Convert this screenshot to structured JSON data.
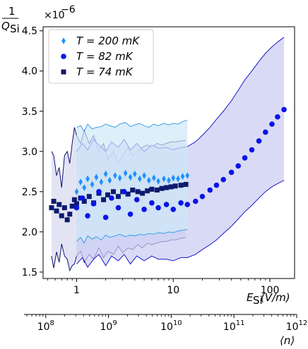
{
  "chart_data": {
    "type": "scatter",
    "title": "",
    "ylabel_num": "1",
    "ylabel_den": "Q",
    "ylabel_sub": "Si",
    "ylabel_multiplier": "×10",
    "ylabel_multiplier_exp": "−6",
    "xlabel_main": "E",
    "xlabel_sub": "Si",
    "xlabel_unit": " (V/m)",
    "x2label": "⟨n⟩",
    "x_scale": "log",
    "xlim": [
      0.45,
      180
    ],
    "ylim": [
      1.42,
      4.55
    ],
    "x2lim": [
      45000000.0,
      1000000000000.0
    ],
    "x2_scale": "log",
    "yticks": [
      {
        "v": 1.5,
        "label": "1.5"
      },
      {
        "v": 2.0,
        "label": "2.0"
      },
      {
        "v": 2.5,
        "label": "2.5"
      },
      {
        "v": 3.0,
        "label": "3.0"
      },
      {
        "v": 3.5,
        "label": "3.5"
      },
      {
        "v": 4.0,
        "label": "4.0"
      },
      {
        "v": 4.5,
        "label": "4.5"
      }
    ],
    "xticks": [
      {
        "v": 1,
        "label": "1"
      },
      {
        "v": 10,
        "label": "10"
      },
      {
        "v": 100,
        "label": "100"
      }
    ],
    "x2ticks": [
      {
        "v": 100000000.0,
        "base": "10",
        "exp": "8"
      },
      {
        "v": 1000000000.0,
        "base": "10",
        "exp": "9"
      },
      {
        "v": 10000000000.0,
        "base": "10",
        "exp": "10"
      },
      {
        "v": 100000000000.0,
        "base": "10",
        "exp": "11"
      },
      {
        "v": 1000000000000.0,
        "base": "10",
        "exp": "12"
      }
    ],
    "legend_position": "top-left",
    "grid": false,
    "series": [
      {
        "name": "T = 200 mK",
        "marker": "diamond",
        "color": "#1e90ff",
        "band_fill": "#cfe8f7",
        "band_edge": "#3aa0e8",
        "x": [
          1.0,
          1.1,
          1.2,
          1.3,
          1.45,
          1.6,
          1.8,
          2.0,
          2.2,
          2.5,
          2.8,
          3.2,
          3.6,
          4.0,
          4.5,
          5.0,
          5.6,
          6.3,
          7.0,
          8.0,
          9.0,
          10.0,
          11.2,
          12.5,
          14.0
        ],
        "y": [
          2.5,
          2.62,
          2.55,
          2.66,
          2.59,
          2.68,
          2.62,
          2.72,
          2.64,
          2.7,
          2.67,
          2.73,
          2.68,
          2.72,
          2.66,
          2.7,
          2.64,
          2.67,
          2.63,
          2.66,
          2.64,
          2.67,
          2.66,
          2.69,
          2.7
        ],
        "band_upper": [
          3.3,
          3.32,
          3.25,
          3.34,
          3.28,
          3.3,
          3.31,
          3.34,
          3.32,
          3.3,
          3.34,
          3.36,
          3.31,
          3.33,
          3.35,
          3.32,
          3.3,
          3.34,
          3.32,
          3.35,
          3.33,
          3.35,
          3.34,
          3.37,
          3.39
        ],
        "band_lower": [
          1.88,
          1.93,
          1.86,
          1.95,
          1.91,
          1.94,
          1.9,
          1.96,
          1.93,
          1.95,
          1.97,
          1.94,
          1.96,
          1.95,
          1.97,
          1.96,
          1.98,
          1.97,
          1.99,
          1.98,
          2.0,
          1.99,
          2.01,
          2.02,
          2.03
        ]
      },
      {
        "name": "T = 82 mK",
        "marker": "circle",
        "color": "#0a14e6",
        "band_fill": "#c9ccf2",
        "band_edge": "#1a1acc",
        "x": [
          1.0,
          1.15,
          1.3,
          1.5,
          1.7,
          2.0,
          2.3,
          2.7,
          3.1,
          3.6,
          4.2,
          5.0,
          6.0,
          7.0,
          8.5,
          10.0,
          12.0,
          14.0,
          17.0,
          20.0,
          24.0,
          28.0,
          33.0,
          40.0,
          47.0,
          55.0,
          65.0,
          77.0,
          90.0,
          105.0,
          120.0,
          140.0
        ],
        "y": [
          2.3,
          2.42,
          2.2,
          2.35,
          2.5,
          2.18,
          2.42,
          2.3,
          2.5,
          2.22,
          2.4,
          2.28,
          2.36,
          2.3,
          2.34,
          2.28,
          2.36,
          2.34,
          2.38,
          2.44,
          2.52,
          2.58,
          2.65,
          2.74,
          2.82,
          2.92,
          3.02,
          3.13,
          3.24,
          3.34,
          3.43,
          3.52
        ],
        "band_upper": [
          3.0,
          3.1,
          3.02,
          3.15,
          3.08,
          3.0,
          3.12,
          3.05,
          3.15,
          3.02,
          3.1,
          3.0,
          3.08,
          3.04,
          3.05,
          3.02,
          3.05,
          3.06,
          3.12,
          3.2,
          3.3,
          3.4,
          3.5,
          3.63,
          3.76,
          3.89,
          4.0,
          4.12,
          4.22,
          4.3,
          4.36,
          4.42
        ],
        "band_lower": [
          1.6,
          1.68,
          1.56,
          1.66,
          1.72,
          1.58,
          1.7,
          1.64,
          1.72,
          1.6,
          1.7,
          1.64,
          1.7,
          1.66,
          1.66,
          1.64,
          1.68,
          1.68,
          1.72,
          1.78,
          1.84,
          1.9,
          1.98,
          2.07,
          2.16,
          2.25,
          2.33,
          2.42,
          2.5,
          2.56,
          2.6,
          2.64
        ]
      },
      {
        "name": "T = 74 mK",
        "marker": "square",
        "color": "#0d1a6e",
        "band_fill": "#d6d9ef",
        "band_edge": "#101070",
        "x": [
          0.55,
          0.58,
          0.62,
          0.66,
          0.7,
          0.75,
          0.8,
          0.85,
          0.9,
          0.95,
          1.0,
          1.1,
          1.2,
          1.35,
          1.5,
          1.7,
          1.9,
          2.1,
          2.4,
          2.7,
          3.0,
          3.4,
          3.8,
          4.3,
          4.8,
          5.4,
          6.0,
          6.8,
          7.6,
          8.5,
          9.5,
          10.5,
          12.0,
          13.5
        ],
        "y": [
          2.3,
          2.38,
          2.26,
          2.34,
          2.2,
          2.3,
          2.15,
          2.22,
          2.32,
          2.4,
          2.35,
          2.42,
          2.38,
          2.44,
          2.36,
          2.48,
          2.4,
          2.46,
          2.5,
          2.44,
          2.5,
          2.47,
          2.52,
          2.5,
          2.48,
          2.51,
          2.53,
          2.52,
          2.54,
          2.55,
          2.56,
          2.57,
          2.58,
          2.59
        ],
        "band_upper": [
          3.0,
          2.95,
          2.7,
          2.8,
          2.55,
          2.95,
          3.0,
          2.85,
          3.1,
          3.3,
          3.2,
          3.1,
          3.26,
          3.1,
          3.2,
          3.0,
          3.1,
          2.9,
          3.0,
          2.85,
          2.95,
          3.05,
          2.95,
          3.0,
          3.05,
          3.08,
          3.05,
          3.1,
          3.08,
          3.1,
          3.12,
          3.12,
          3.13,
          3.14
        ],
        "band_lower": [
          1.7,
          1.55,
          1.75,
          1.62,
          1.85,
          1.7,
          1.66,
          1.52,
          1.58,
          1.6,
          1.7,
          1.76,
          1.62,
          1.72,
          1.66,
          1.8,
          1.68,
          1.76,
          1.72,
          1.82,
          1.74,
          1.8,
          1.78,
          1.84,
          1.8,
          1.86,
          1.84,
          1.86,
          1.88,
          1.88,
          1.9,
          1.9,
          1.92,
          1.93
        ]
      }
    ]
  }
}
